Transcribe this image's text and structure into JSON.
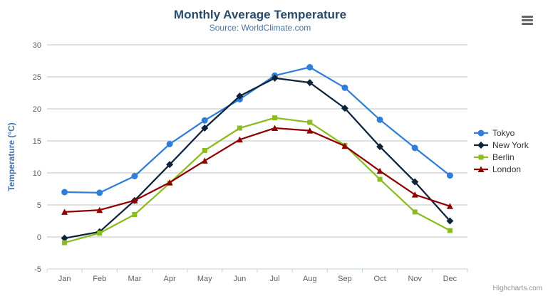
{
  "title": "Monthly Average Temperature",
  "subtitle": "Source: WorldClimate.com",
  "credits": "Highcharts.com",
  "colors": {
    "title": "#274b6d",
    "subtitle": "#4d759e",
    "axis_label": "#606060",
    "axis_title": "#4572a7",
    "gridline": "#c0c0c0",
    "axis_line": "#c0d0e0",
    "legend_text": "#333333",
    "credits_text": "#909090",
    "menu_icon": "#666666",
    "background": "#ffffff"
  },
  "chart_data": {
    "type": "line",
    "title": "Monthly Average Temperature",
    "subtitle": "Source: WorldClimate.com",
    "categories": [
      "Jan",
      "Feb",
      "Mar",
      "Apr",
      "May",
      "Jun",
      "Jul",
      "Aug",
      "Sep",
      "Oct",
      "Nov",
      "Dec"
    ],
    "series": [
      {
        "name": "Tokyo",
        "color": "#2f7ed8",
        "marker": "circle",
        "values": [
          7.0,
          6.9,
          9.5,
          14.5,
          18.2,
          21.5,
          25.2,
          26.5,
          23.3,
          18.3,
          13.9,
          9.6
        ]
      },
      {
        "name": "New York",
        "color": "#0d233a",
        "marker": "diamond",
        "values": [
          -0.2,
          0.8,
          5.7,
          11.3,
          17.0,
          22.0,
          24.8,
          24.1,
          20.1,
          14.1,
          8.6,
          2.5
        ]
      },
      {
        "name": "Berlin",
        "color": "#8bbc21",
        "marker": "square",
        "values": [
          -0.9,
          0.6,
          3.5,
          8.4,
          13.5,
          17.0,
          18.6,
          17.9,
          14.3,
          9.0,
          3.9,
          1.0
        ]
      },
      {
        "name": "London",
        "color": "#910000",
        "marker": "triangle",
        "values": [
          3.9,
          4.2,
          5.7,
          8.5,
          11.9,
          15.2,
          17.0,
          16.6,
          14.2,
          10.3,
          6.6,
          4.8
        ]
      }
    ],
    "xlabel": "",
    "ylabel": "Temperature (°C)",
    "ylim": [
      -5,
      30
    ],
    "ytick_step": 5,
    "grid": true,
    "legend_position": "right"
  }
}
